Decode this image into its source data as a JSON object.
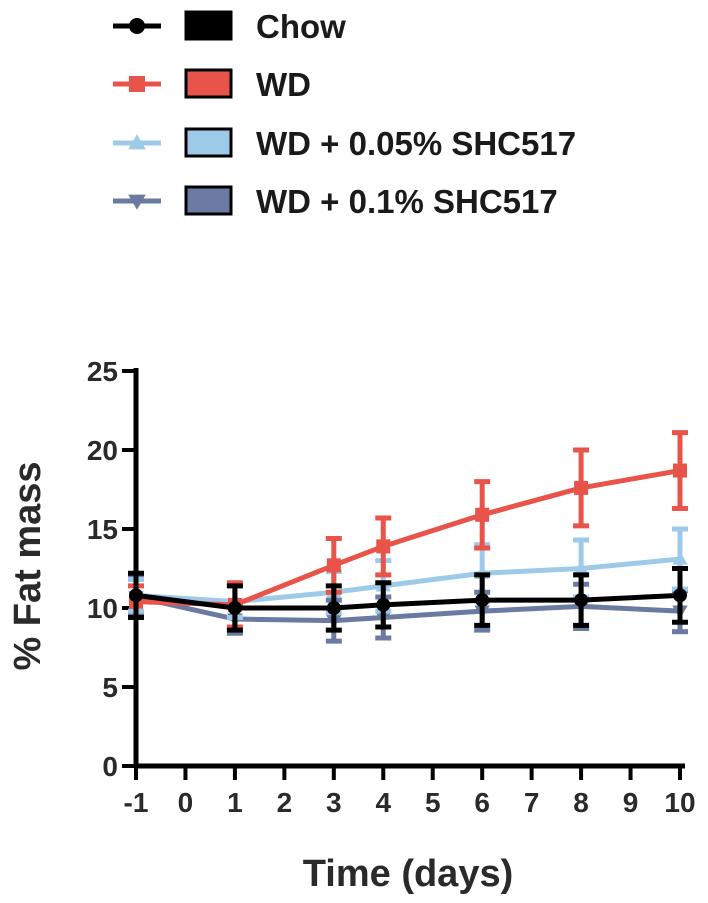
{
  "chart_data": {
    "type": "line",
    "title": "",
    "xlabel": "Time (days)",
    "ylabel": "% Fat mass",
    "xlim": [
      -1,
      10
    ],
    "ylim": [
      0,
      25
    ],
    "xticks": [
      -1,
      0,
      1,
      2,
      3,
      4,
      5,
      6,
      7,
      8,
      9,
      10
    ],
    "yticks": [
      0,
      5,
      10,
      15,
      20,
      25
    ],
    "legend_position": "top-left",
    "grid": false,
    "series": [
      {
        "name": "WD + 0.1% SHC517",
        "color": "#6b7aa1",
        "marker": "triangle-down",
        "x": [
          -1,
          1,
          3,
          4,
          6,
          8,
          10
        ],
        "y": [
          10.7,
          9.3,
          9.2,
          9.4,
          9.8,
          10.1,
          9.8
        ],
        "err": [
          1.2,
          0.9,
          1.3,
          1.3,
          1.2,
          1.4,
          1.3
        ]
      },
      {
        "name": "WD + 0.05% SHC517",
        "color": "#9ecae9",
        "marker": "triangle-up",
        "x": [
          -1,
          1,
          3,
          4,
          6,
          8,
          10
        ],
        "y": [
          10.8,
          10.4,
          11.0,
          11.4,
          12.2,
          12.5,
          13.1
        ],
        "err": [
          1.0,
          1.0,
          1.3,
          1.6,
          1.8,
          1.8,
          1.9
        ]
      },
      {
        "name": "WD",
        "color": "#e8534a",
        "marker": "square",
        "x": [
          -1,
          1,
          3,
          4,
          6,
          8,
          10
        ],
        "y": [
          10.4,
          10.2,
          12.7,
          13.9,
          15.9,
          17.6,
          18.7
        ],
        "err": [
          1.0,
          1.4,
          1.7,
          1.8,
          2.1,
          2.4,
          2.4
        ]
      },
      {
        "name": "Chow",
        "color": "#000000",
        "marker": "circle",
        "x": [
          -1,
          1,
          3,
          4,
          6,
          8,
          10
        ],
        "y": [
          10.8,
          10.0,
          10.0,
          10.2,
          10.5,
          10.5,
          10.8
        ],
        "err": [
          1.4,
          1.4,
          1.4,
          1.4,
          1.6,
          1.6,
          1.7
        ]
      }
    ]
  },
  "legend": [
    {
      "label": "Chow",
      "color": "#000000",
      "marker": "circle"
    },
    {
      "label": "WD",
      "color": "#e8534a",
      "marker": "square"
    },
    {
      "label": "WD + 0.05% SHC517",
      "color": "#9ecae9",
      "marker": "triangle-up"
    },
    {
      "label": "WD + 0.1% SHC517",
      "color": "#6b7aa1",
      "marker": "triangle-down"
    }
  ]
}
